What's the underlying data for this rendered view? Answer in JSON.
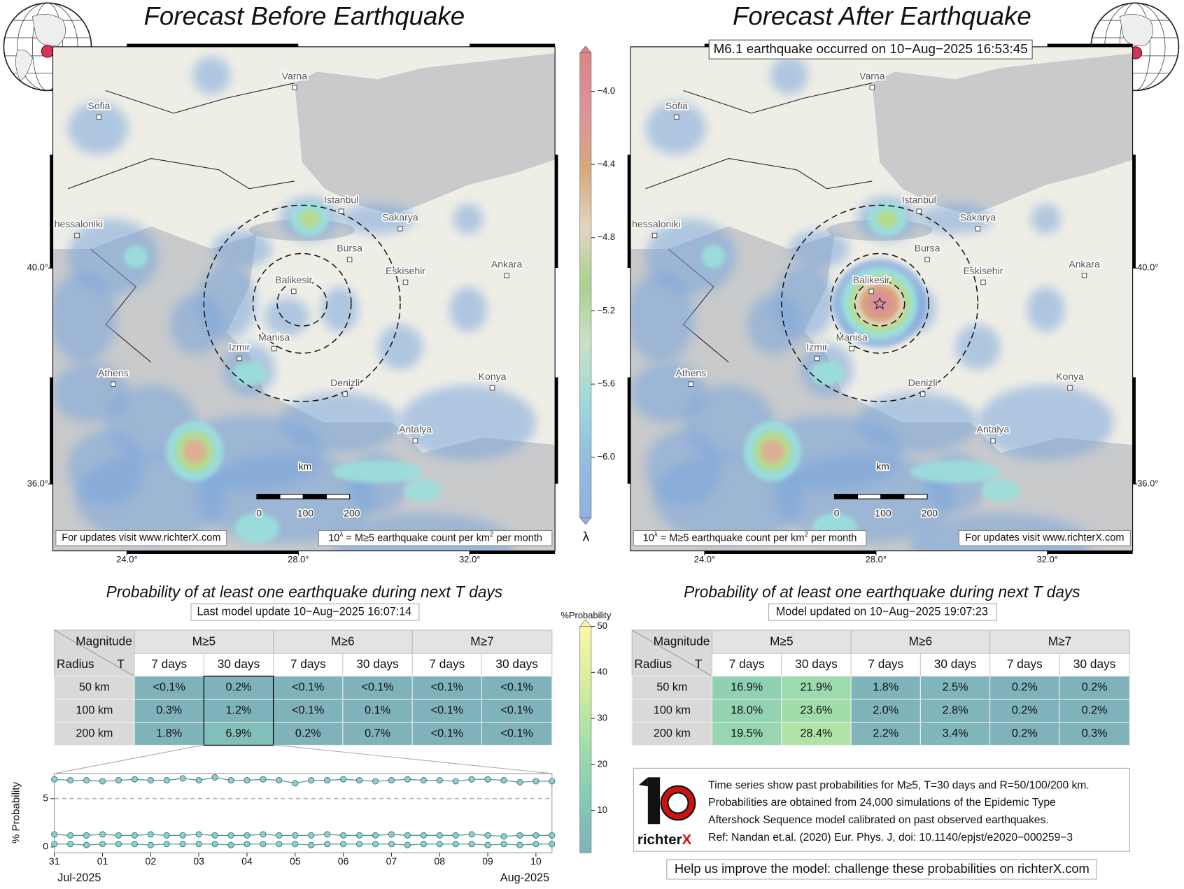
{
  "left_map": {
    "title": "Forecast Before Earthquake",
    "cities": [
      "Varna",
      "Sofia",
      "Istanbul",
      "Sakarya",
      "hessaloniki",
      "Bursa",
      "Eskisehir",
      "Ankara",
      "Balikesir",
      "Manisa",
      "Izmir",
      "Athens",
      "Denizli",
      "Konya",
      "Antalya"
    ],
    "scale": {
      "labels": [
        "0",
        "100",
        "200"
      ],
      "unit": "km"
    },
    "updates_note": "For updates visit www.richterX.com",
    "unit_note": [
      "10",
      "λ",
      " = M≥5 earthquake count per km",
      "2",
      " per month"
    ],
    "xlim": [
      22.27,
      33.99
    ],
    "ylim": [
      34.76,
      44.1
    ],
    "xticks": [
      {
        "value": 24,
        "label": "24.0°"
      },
      {
        "value": 28,
        "label": "28.0°"
      },
      {
        "value": 32,
        "label": "32.0°"
      }
    ],
    "yticks": [
      {
        "value": 36,
        "label": "36.0°"
      },
      {
        "value": 40,
        "label": "40.0°"
      }
    ]
  },
  "right_map": {
    "title": "Forecast After Earthquake",
    "event": "M6.1 earthquake occurred on 10−Aug−2025 16:53:45",
    "cities": [
      "Varna",
      "Sofia",
      "Istanbul",
      "Sakarya",
      "hessaloniki",
      "Bursa",
      "Eskisehir",
      "Ankara",
      "Balikesir",
      "Manisa",
      "Izmir",
      "Athens",
      "Denizli",
      "Konya",
      "Antalya"
    ],
    "scale": {
      "labels": [
        "0",
        "100",
        "200"
      ],
      "unit": "km"
    },
    "updates_note": "For updates visit www.richterX.com",
    "unit_note": [
      "10",
      "λ",
      " = M≥5 earthquake count per km",
      "2",
      " per month"
    ],
    "xlim": [
      22.27,
      33.99
    ],
    "ylim": [
      34.76,
      44.1
    ],
    "xticks": [
      {
        "value": 24,
        "label": "24.0°"
      },
      {
        "value": 28,
        "label": "28.0°"
      },
      {
        "value": 32,
        "label": "32.0°"
      }
    ],
    "yticks": [
      {
        "value": 36,
        "label": "36.0°"
      },
      {
        "value": 40,
        "label": "40.0°"
      }
    ]
  },
  "lambda_colorbar": {
    "label": "λ",
    "lim": [
      -6.33,
      -3.79
    ],
    "ticks": [
      {
        "value": -6.0,
        "label": "−6.0"
      },
      {
        "value": -5.6,
        "label": "−5.6"
      },
      {
        "value": -5.2,
        "label": "−5.2"
      },
      {
        "value": -4.8,
        "label": "−4.8"
      },
      {
        "value": -4.4,
        "label": "−4.4"
      },
      {
        "value": -4.0,
        "label": "−4.0"
      }
    ],
    "colors": [
      "#8fb2e0",
      "#92bde0",
      "#9fd9d9",
      "#c9e2c6",
      "#a9d18e",
      "#e3d5c1",
      "#d7a77c",
      "#dd949a",
      "#d98585"
    ]
  },
  "probability_colorbar": {
    "title": "%Probability",
    "lim": [
      0.8,
      50
    ],
    "ticks": [
      10,
      20,
      30,
      40,
      50
    ],
    "colors": [
      "#7fb2bb",
      "#86cbb8",
      "#a6e0a8",
      "#d6ee9e",
      "#fdf6aa"
    ]
  },
  "left_table": {
    "subtitle": "Probability of at least one earthquake during next T days",
    "update": "Last model update 10−Aug−2025 16:07:14",
    "corner": [
      "Magnitude",
      "Radius",
      "T"
    ],
    "magnitudes": [
      "M≥5",
      "M≥6",
      "M≥7"
    ],
    "periods": [
      "7 days",
      "30 days",
      "7 days",
      "30 days",
      "7 days",
      "30 days"
    ],
    "rows": [
      {
        "radius": "50 km",
        "cells": [
          "<0.1%",
          "0.2%",
          "<0.1%",
          "<0.1%",
          "<0.1%",
          "<0.1%"
        ]
      },
      {
        "radius": "100 km",
        "cells": [
          "0.3%",
          "1.2%",
          "<0.1%",
          "0.1%",
          "<0.1%",
          "<0.1%"
        ]
      },
      {
        "radius": "200 km",
        "cells": [
          "1.8%",
          "6.9%",
          "0.2%",
          "0.7%",
          "<0.1%",
          "<0.1%"
        ]
      }
    ]
  },
  "right_table": {
    "subtitle": "Probability of at least one earthquake during next T days",
    "update": "Model updated on 10−Aug−2025 19:07:23",
    "corner": [
      "Magnitude",
      "Radius",
      "T"
    ],
    "magnitudes": [
      "M≥5",
      "M≥6",
      "M≥7"
    ],
    "periods": [
      "7 days",
      "30 days",
      "7 days",
      "30 days",
      "7 days",
      "30 days"
    ],
    "rows": [
      {
        "radius": "50 km",
        "cells": [
          "16.9%",
          "21.9%",
          "1.8%",
          "2.5%",
          "0.2%",
          "0.2%"
        ]
      },
      {
        "radius": "100 km",
        "cells": [
          "18.0%",
          "23.6%",
          "2.0%",
          "2.8%",
          "0.2%",
          "0.2%"
        ]
      },
      {
        "radius": "200 km",
        "cells": [
          "19.5%",
          "28.4%",
          "2.2%",
          "3.4%",
          "0.2%",
          "0.3%"
        ]
      }
    ]
  },
  "chart_data": {
    "type": "line",
    "ylabel": "% Probability",
    "categories": [
      "31",
      null,
      null,
      "01",
      null,
      null,
      "02",
      null,
      null,
      "03",
      null,
      null,
      "04",
      null,
      null,
      "05",
      null,
      null,
      "06",
      null,
      null,
      "07",
      null,
      null,
      "08",
      null,
      null,
      "09",
      null,
      null,
      "10",
      null
    ],
    "months": [
      "Jul-2025",
      "Aug-2025"
    ],
    "ylim": [
      -0.6,
      7.6
    ],
    "yticks": [
      0,
      5
    ],
    "grid": true,
    "series": [
      {
        "color": "#8ccfcb",
        "values": [
          7.0,
          6.9,
          6.9,
          6.8,
          6.9,
          7.0,
          6.9,
          6.9,
          7.1,
          6.9,
          7.2,
          6.9,
          6.9,
          7.0,
          6.9,
          6.6,
          6.9,
          6.9,
          7.0,
          6.9,
          6.8,
          6.9,
          7.0,
          6.9,
          6.9,
          6.8,
          7.0,
          7.0,
          6.9,
          6.7,
          6.8,
          6.8
        ]
      },
      {
        "color": "#8ccfcb",
        "values": [
          1.3,
          1.2,
          1.2,
          1.3,
          1.2,
          1.2,
          1.3,
          1.2,
          1.2,
          1.3,
          1.2,
          1.2,
          1.2,
          1.3,
          1.2,
          1.2,
          1.2,
          1.3,
          1.2,
          1.2,
          1.2,
          1.3,
          1.2,
          1.2,
          1.2,
          1.2,
          1.3,
          1.2,
          1.1,
          1.2,
          1.2,
          1.2
        ]
      },
      {
        "color": "#8ccfcb",
        "values": [
          0.3,
          0.3,
          0.2,
          0.3,
          0.3,
          0.3,
          0.2,
          0.3,
          0.3,
          0.3,
          0.3,
          0.2,
          0.3,
          0.3,
          0.3,
          0.3,
          0.2,
          0.3,
          0.3,
          0.3,
          0.3,
          0.3,
          0.2,
          0.3,
          0.3,
          0.3,
          0.3,
          0.2,
          0.3,
          0.2,
          0.3,
          0.3
        ]
      }
    ]
  },
  "info": {
    "lines": [
      "Time series show past probabilities for M≥5, T=30 days and R=50/100/200 km.",
      "Probabilities are obtained from 24,000 simulations of the Epidemic Type",
      "Aftershock Sequence model calibrated on past observed earthquakes.",
      "Ref: Nandan et.al. (2020) Eur. Phys. J, doi: 10.1140/epjst/e2020−000259−3"
    ],
    "logo": [
      "richter",
      "X"
    ]
  },
  "footer": "Help us improve the model: challenge these probabilities on richterX.com"
}
